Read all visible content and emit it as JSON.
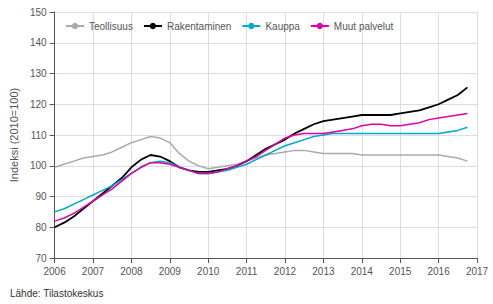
{
  "chart_data": {
    "type": "line",
    "y_label": "Indeksi (2010=100)",
    "annotations": [
      "Lähde: Tilastokeskus"
    ],
    "x": [
      2006.0,
      2006.25,
      2006.5,
      2006.75,
      2007.0,
      2007.25,
      2007.5,
      2007.75,
      2008.0,
      2008.25,
      2008.5,
      2008.75,
      2009.0,
      2009.25,
      2009.5,
      2009.75,
      2010.0,
      2010.25,
      2010.5,
      2010.75,
      2011.0,
      2011.25,
      2011.5,
      2011.75,
      2012.0,
      2012.25,
      2012.5,
      2012.75,
      2013.0,
      2013.25,
      2013.5,
      2013.75,
      2014.0,
      2014.25,
      2014.5,
      2014.75,
      2015.0,
      2015.25,
      2015.5,
      2015.75,
      2016.0,
      2016.25,
      2016.5,
      2016.75
    ],
    "series": [
      {
        "name": "Teollisuus",
        "color": "#aaaaaa",
        "values": [
          99.5,
          100.5,
          101.5,
          102.5,
          103.0,
          103.5,
          104.5,
          106.0,
          107.5,
          108.5,
          109.5,
          109.0,
          107.5,
          104.0,
          101.5,
          100.0,
          99.0,
          99.5,
          100.0,
          100.5,
          101.5,
          102.5,
          103.5,
          104.0,
          104.5,
          105.0,
          105.0,
          104.5,
          104.0,
          104.0,
          104.0,
          104.0,
          103.5,
          103.5,
          103.5,
          103.5,
          103.5,
          103.5,
          103.5,
          103.5,
          103.5,
          103.0,
          102.5,
          101.5
        ]
      },
      {
        "name": "Rakentaminen",
        "color": "#000000",
        "values": [
          80.0,
          81.5,
          83.5,
          86.0,
          88.5,
          91.0,
          93.5,
          96.0,
          99.5,
          102.0,
          103.5,
          103.0,
          101.5,
          99.5,
          98.5,
          98.0,
          98.0,
          98.5,
          99.0,
          100.0,
          101.5,
          103.5,
          105.5,
          107.0,
          108.5,
          110.5,
          112.0,
          113.5,
          114.5,
          115.0,
          115.5,
          116.0,
          116.5,
          116.5,
          116.5,
          116.5,
          117.0,
          117.5,
          118.0,
          119.0,
          120.0,
          121.5,
          123.0,
          125.5
        ]
      },
      {
        "name": "Kauppa",
        "color": "#00aacc",
        "values": [
          85.0,
          86.0,
          87.5,
          89.0,
          90.5,
          92.0,
          93.5,
          95.5,
          97.5,
          99.5,
          101.0,
          101.5,
          101.0,
          99.5,
          98.5,
          97.5,
          97.5,
          98.0,
          98.5,
          99.5,
          100.5,
          102.0,
          103.5,
          105.0,
          106.5,
          107.5,
          108.5,
          109.5,
          110.0,
          110.5,
          110.5,
          110.5,
          110.5,
          110.5,
          110.5,
          110.5,
          110.5,
          110.5,
          110.5,
          110.5,
          110.5,
          111.0,
          111.5,
          112.5
        ]
      },
      {
        "name": "Muut palvelut",
        "color": "#dd00aa",
        "values": [
          82.0,
          83.0,
          84.5,
          86.5,
          88.5,
          90.5,
          92.5,
          95.0,
          97.5,
          99.5,
          101.0,
          101.0,
          100.5,
          99.5,
          98.5,
          97.5,
          97.5,
          98.0,
          99.0,
          100.0,
          101.5,
          103.0,
          105.0,
          107.0,
          109.0,
          110.0,
          110.5,
          110.5,
          110.5,
          111.0,
          111.5,
          112.0,
          113.0,
          113.5,
          113.5,
          113.0,
          113.0,
          113.5,
          114.0,
          115.0,
          115.5,
          116.0,
          116.5,
          117.0
        ]
      }
    ],
    "xlim": [
      2006.0,
      2017.0
    ],
    "xticks": [
      2006,
      2007,
      2008,
      2009,
      2010,
      2011,
      2012,
      2013,
      2014,
      2015,
      2016,
      2017
    ],
    "ylim": [
      70,
      150
    ],
    "yticks": [
      70,
      80,
      90,
      100,
      110,
      120,
      130,
      140,
      150
    ],
    "grid": true,
    "legend": "upper left"
  }
}
